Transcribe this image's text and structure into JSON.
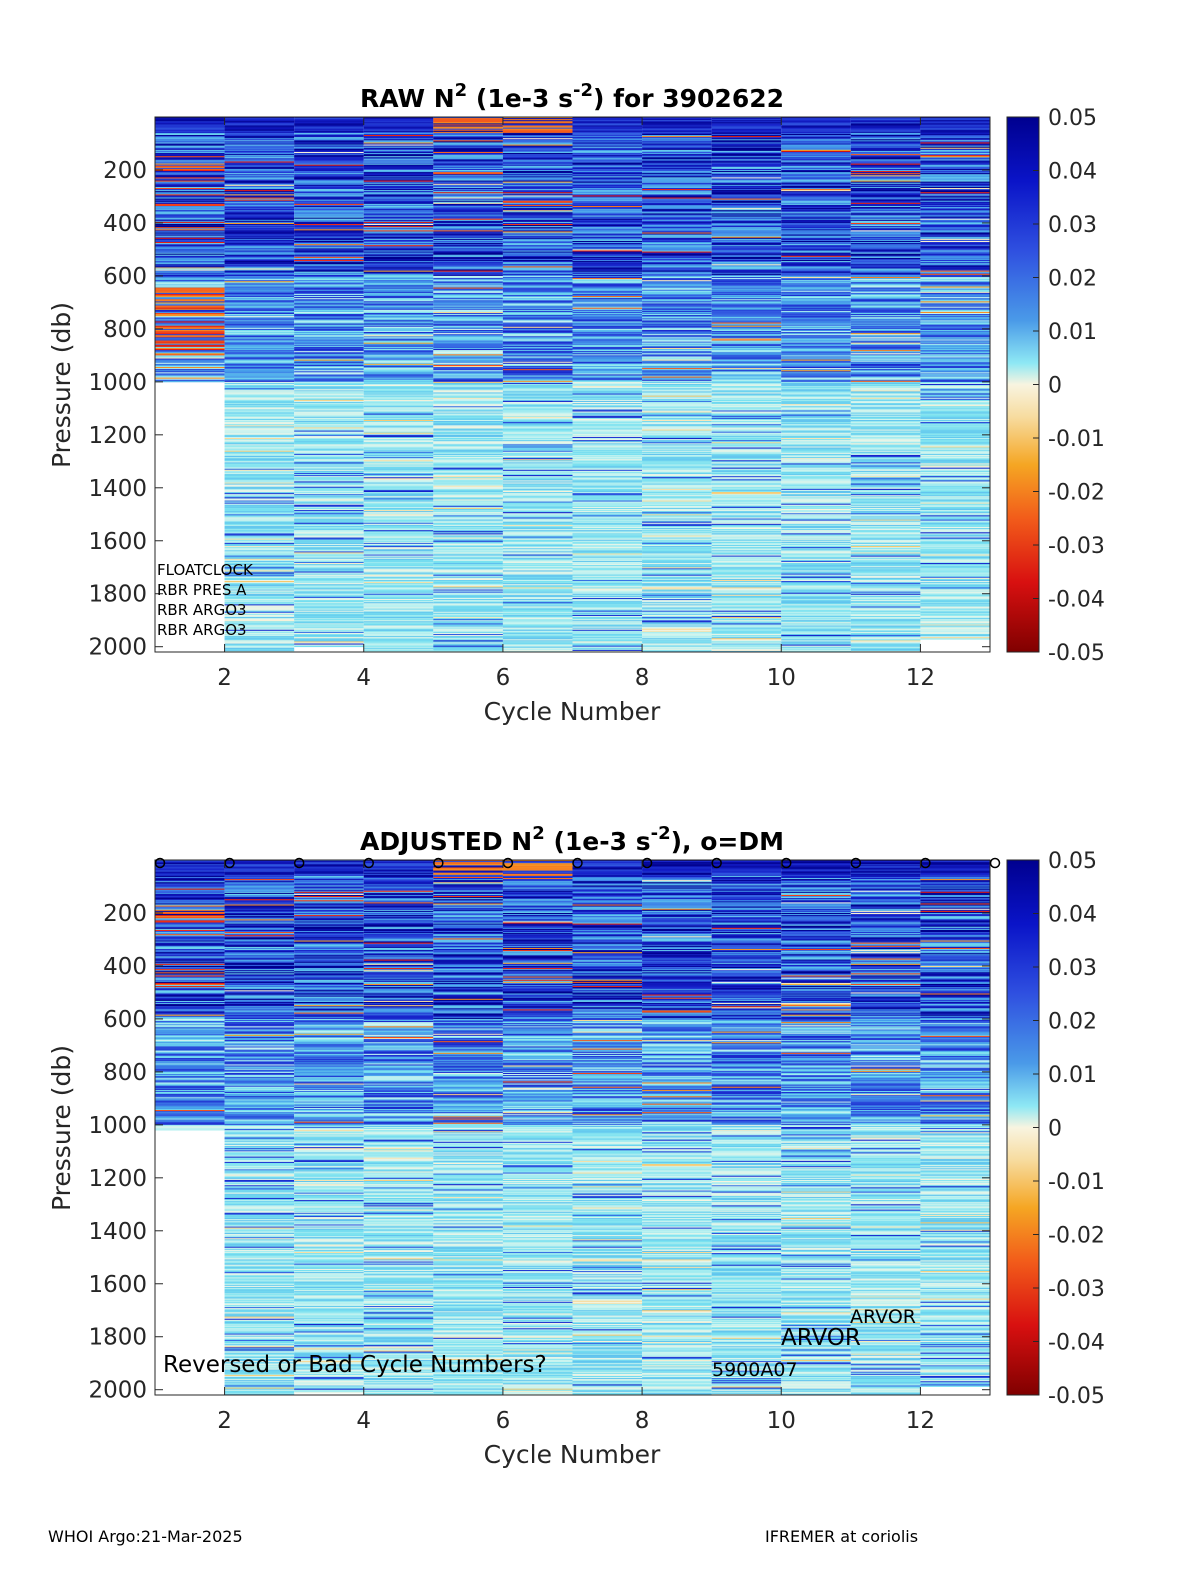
{
  "chart_data": [
    {
      "type": "heatmap",
      "title_parts": [
        "RAW N",
        "2",
        " (1e-3 s",
        "-2",
        ") for 3902622"
      ],
      "xlabel": "Cycle Number",
      "ylabel": "Pressure (db)",
      "x_ticks": [
        2,
        4,
        6,
        8,
        10,
        12
      ],
      "y_ticks": [
        200,
        400,
        600,
        800,
        1000,
        1200,
        1400,
        1600,
        1800,
        2000
      ],
      "xlim": [
        1,
        13
      ],
      "ylim": [
        0,
        2020
      ],
      "y_reversed": true,
      "colorbar": {
        "min": -0.05,
        "max": 0.05,
        "ticks": [
          "0.05",
          "0.04",
          "0.03",
          "0.02",
          "0.01",
          "0",
          "-0.01",
          "-0.02",
          "-0.03",
          "-0.04",
          "-0.05"
        ]
      },
      "colormap": "jet-like (dark red → red → orange → cream at 0 → cyan → blue → dark blue)",
      "cycles": [
        {
          "cycle": 1,
          "max_pressure": 1000,
          "character": "dense blue/dark blue near surface, orange and red bands 600-900 db"
        },
        {
          "cycle": 2,
          "max_pressure": 2020,
          "character": "blue above 600 db, cyan/light blue below"
        },
        {
          "cycle": 3,
          "max_pressure": 2000,
          "character": "blue above 600 db, cyan/light blue below"
        },
        {
          "cycle": 4,
          "max_pressure": 2020,
          "character": "dark blue above 700 db, cyan below"
        },
        {
          "cycle": 5,
          "max_pressure": 2020,
          "character": "orange near surface, blue to cyan"
        },
        {
          "cycle": 6,
          "max_pressure": 2020,
          "character": "orange near surface, blue to cyan"
        },
        {
          "cycle": 7,
          "max_pressure": 2020,
          "character": "dark blue above 500 db, cyan below"
        },
        {
          "cycle": 8,
          "max_pressure": 2020,
          "character": "dark blue above 500 db, cyan below"
        },
        {
          "cycle": 9,
          "max_pressure": 2020,
          "character": "blue to cyan, pale below 1600 db"
        },
        {
          "cycle": 10,
          "max_pressure": 2020,
          "character": "dark blue above 400 db, cyan below"
        },
        {
          "cycle": 11,
          "max_pressure": 2020,
          "character": "dark blue above 400 db, cyan below"
        },
        {
          "cycle": 12,
          "max_pressure": 1970,
          "character": "dark blue above 400 db, cyan below"
        }
      ],
      "annotations": [
        "FLOATCLOCK",
        "RBR PRES A",
        "RBR ARGO3",
        "RBR ARGO3"
      ]
    },
    {
      "type": "heatmap",
      "title_parts": [
        "ADJUSTED N",
        "2",
        " (1e-3 s",
        "-2",
        "), o=DM"
      ],
      "xlabel": "Cycle Number",
      "ylabel": "Pressure (db)",
      "x_ticks": [
        2,
        4,
        6,
        8,
        10,
        12
      ],
      "y_ticks": [
        200,
        400,
        600,
        800,
        1000,
        1200,
        1400,
        1600,
        1800,
        2000
      ],
      "xlim": [
        1,
        13
      ],
      "ylim": [
        0,
        2020
      ],
      "y_reversed": true,
      "colorbar": {
        "min": -0.05,
        "max": 0.05,
        "ticks": [
          "0.05",
          "0.04",
          "0.03",
          "0.02",
          "0.01",
          "0",
          "-0.01",
          "-0.02",
          "-0.03",
          "-0.04",
          "-0.05"
        ]
      },
      "dm_marker": "o",
      "dm_cycles": [
        1,
        2,
        3,
        4,
        5,
        6,
        7,
        8,
        9,
        10,
        11,
        12,
        13
      ],
      "cycles": [
        {
          "cycle": 1,
          "max_pressure": 1020
        },
        {
          "cycle": 2,
          "max_pressure": 2020
        },
        {
          "cycle": 3,
          "max_pressure": 2010
        },
        {
          "cycle": 4,
          "max_pressure": 2020
        },
        {
          "cycle": 5,
          "max_pressure": 2020
        },
        {
          "cycle": 6,
          "max_pressure": 2020
        },
        {
          "cycle": 7,
          "max_pressure": 2020
        },
        {
          "cycle": 8,
          "max_pressure": 2020
        },
        {
          "cycle": 9,
          "max_pressure": 2020
        },
        {
          "cycle": 10,
          "max_pressure": 2020
        },
        {
          "cycle": 11,
          "max_pressure": 2020
        },
        {
          "cycle": 12,
          "max_pressure": 1985
        }
      ],
      "annotations": {
        "warning": "Reversed or Bad Cycle Numbers?",
        "arvor_small": "ARVOR",
        "arvor_large": "ARVOR",
        "firmware": "5900A07"
      }
    }
  ],
  "footer": {
    "left": "WHOI Argo:21-Mar-2025",
    "right": "IFREMER at coriolis"
  }
}
